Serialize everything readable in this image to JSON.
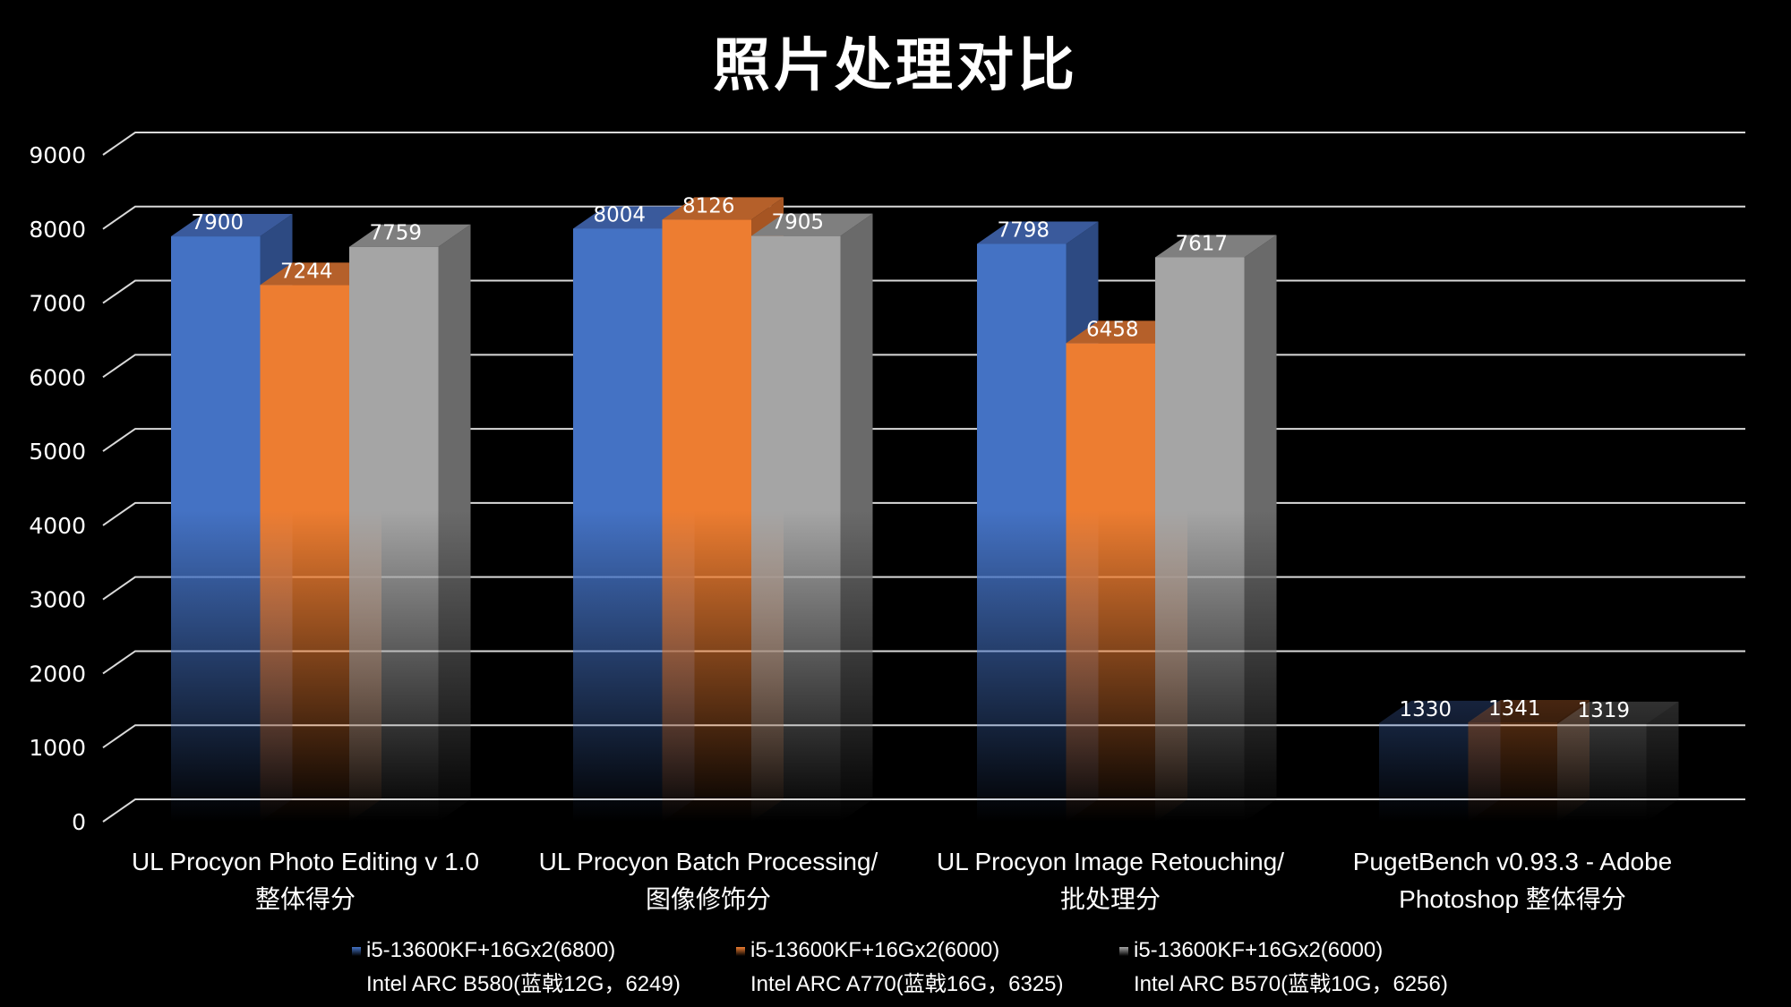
{
  "chart_data": {
    "type": "bar",
    "title": "照片处理对比",
    "categories": [
      [
        "UL Procyon Photo Editing v 1.0",
        "整体得分"
      ],
      [
        "UL Procyon Batch Processing/",
        "图像修饰分"
      ],
      [
        "UL Procyon Image Retouching/",
        "批处理分"
      ],
      [
        "PugetBench v0.93.3 - Adobe",
        "Photoshop 整体得分"
      ]
    ],
    "series": [
      {
        "name": [
          "i5-13600KF+16Gx2(6800)",
          "Intel ARC B580(蓝戟12G，6249)"
        ],
        "color": "#4472c4",
        "top": "#3a5a9c",
        "side": "#2d4a82",
        "values": [
          7900,
          8004,
          7798,
          1330
        ]
      },
      {
        "name": [
          "i5-13600KF+16Gx2(6000)",
          "Intel ARC A770(蓝戟16G，6325)"
        ],
        "color": "#ed7d31",
        "top": "#b5602a",
        "side": "#a65523",
        "values": [
          7244,
          8126,
          6458,
          1341
        ]
      },
      {
        "name": [
          "i5-13600KF+16Gx2(6000)",
          "Intel ARC B570(蓝戟10G，6256)"
        ],
        "color": "#a5a5a5",
        "top": "#7f7f7f",
        "side": "#6a6a6a",
        "values": [
          7759,
          7905,
          7617,
          1319
        ]
      }
    ],
    "ylim": [
      0,
      9000
    ],
    "yticks": [
      "0",
      "1000",
      "2000",
      "3000",
      "4000",
      "5000",
      "6000",
      "7000",
      "8000",
      "9000"
    ],
    "grid": true,
    "legend": "bottom",
    "xlabel": "",
    "ylabel": ""
  }
}
